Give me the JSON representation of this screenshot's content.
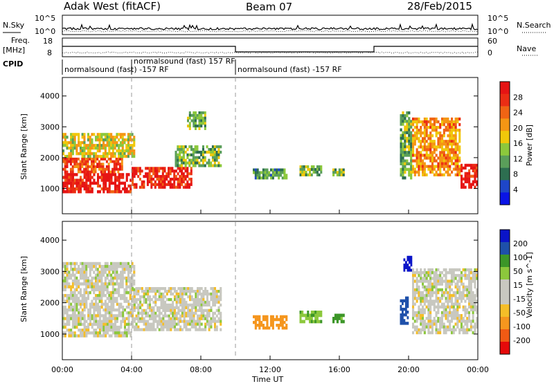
{
  "header": {
    "station": "Adak West (fitACF)",
    "beam": "Beam 07",
    "date": "28/Feb/2015"
  },
  "noise_panel": {
    "left_label": "N.Sky",
    "right_label": "N.Search",
    "left_ticks": [
      "10^5",
      "10^0"
    ],
    "right_ticks": [
      "10^5",
      "10^0"
    ]
  },
  "freq_panel": {
    "left_label_1": "Freq.",
    "left_label_2": "[MHz]",
    "right_label": "Nave",
    "left_ticks": [
      "18",
      "8"
    ],
    "right_ticks": [
      "60",
      "0"
    ]
  },
  "cpid": {
    "label": "CPID",
    "segments": [
      {
        "start_hour": 0,
        "end_hour": 4.0,
        "text": "normalsound (fast) -157 RF"
      },
      {
        "start_hour": 4.0,
        "end_hour": 10.0,
        "text": "normalsound (fast) 157 RF"
      },
      {
        "start_hour": 10.0,
        "end_hour": 24.0,
        "text": "normalsound (fast) -157 RF"
      }
    ]
  },
  "colors": {
    "power": [
      "#0a14e6",
      "#1e46c8",
      "#2d6e50",
      "#5a9e5a",
      "#8cc83c",
      "#f0c80a",
      "#f59614",
      "#f06414",
      "#eb2d14",
      "#e61414"
    ],
    "velocity": [
      "#e60a0a",
      "#f05a14",
      "#f5961e",
      "#f5be28",
      "#c8c8c0",
      "#c8c8c0",
      "#8cc83c",
      "#3c9628",
      "#1e50aa",
      "#0a14c8"
    ]
  },
  "chart_data": [
    {
      "type": "heatmap",
      "title": "Power",
      "xlabel": "Time UT",
      "ylabel": "Slant Range [km]",
      "x_ticks": [
        "00:00",
        "04:00",
        "08:00",
        "12:00",
        "16:00",
        "20:00",
        "00:00"
      ],
      "x_range_hours": [
        0,
        24
      ],
      "y_ticks": [
        1000,
        2000,
        3000,
        4000
      ],
      "y_range_km": [
        180,
        4600
      ],
      "colorbar_label": "Power [dB]",
      "colorbar_ticks": [
        4,
        8,
        12,
        16,
        20,
        24,
        28
      ],
      "colorbar_range": [
        0,
        30
      ],
      "regions": [
        {
          "t0": 0.0,
          "t1": 4.0,
          "r0": 850,
          "r1": 1500,
          "value": 28
        },
        {
          "t0": 0.0,
          "t1": 3.5,
          "r0": 1500,
          "r1": 2000,
          "value": 24
        },
        {
          "t0": 0.0,
          "t1": 4.2,
          "r0": 2000,
          "r1": 2800,
          "value": 16
        },
        {
          "t0": 4.0,
          "t1": 7.5,
          "r0": 1000,
          "r1": 1700,
          "value": 26
        },
        {
          "t0": 6.5,
          "t1": 9.2,
          "r0": 1700,
          "r1": 2400,
          "value": 12
        },
        {
          "t0": 7.2,
          "t1": 8.3,
          "r0": 2900,
          "r1": 3500,
          "value": 12
        },
        {
          "t0": 11.0,
          "t1": 13.0,
          "r0": 1300,
          "r1": 1650,
          "value": 10
        },
        {
          "t0": 13.7,
          "t1": 15.0,
          "r0": 1400,
          "r1": 1750,
          "value": 12
        },
        {
          "t0": 15.6,
          "t1": 16.3,
          "r0": 1400,
          "r1": 1650,
          "value": 12
        },
        {
          "t0": 19.5,
          "t1": 20.2,
          "r0": 1300,
          "r1": 3500,
          "value": 12
        },
        {
          "t0": 20.2,
          "t1": 23.0,
          "r0": 1400,
          "r1": 3300,
          "value": 20
        },
        {
          "t0": 23.0,
          "t1": 24.0,
          "r0": 1000,
          "r1": 1800,
          "value": 28
        }
      ]
    },
    {
      "type": "heatmap",
      "title": "Velocity",
      "xlabel": "Time UT",
      "ylabel": "Slant Range [km]",
      "x_ticks": [
        "00:00",
        "04:00",
        "08:00",
        "12:00",
        "16:00",
        "20:00",
        "00:00"
      ],
      "x_range_hours": [
        0,
        24
      ],
      "y_ticks": [
        1000,
        2000,
        3000,
        4000
      ],
      "y_range_km": [
        180,
        4600
      ],
      "colorbar_label": "Velocity [m s^-1]",
      "colorbar_ticks": [
        200,
        100,
        50,
        15,
        -15,
        -50,
        -100,
        -200
      ],
      "regions": [
        {
          "t0": 0.0,
          "t1": 4.0,
          "r0": 900,
          "r1": 2000,
          "value": 0
        },
        {
          "t0": 0.0,
          "t1": 4.2,
          "r0": 2000,
          "r1": 3300,
          "value": 0
        },
        {
          "t0": 4.0,
          "t1": 9.2,
          "r0": 1100,
          "r1": 2500,
          "value": 0
        },
        {
          "t0": 11.0,
          "t1": 13.0,
          "r0": 1150,
          "r1": 1600,
          "value": -75
        },
        {
          "t0": 13.7,
          "t1": 15.0,
          "r0": 1350,
          "r1": 1750,
          "value": 40
        },
        {
          "t0": 15.6,
          "t1": 16.3,
          "r0": 1350,
          "r1": 1650,
          "value": 60
        },
        {
          "t0": 19.7,
          "t1": 20.2,
          "r0": 3000,
          "r1": 3500,
          "value": 220
        },
        {
          "t0": 19.5,
          "t1": 20.0,
          "r0": 1300,
          "r1": 2200,
          "value": 150
        },
        {
          "t0": 20.2,
          "t1": 24.0,
          "r0": 1000,
          "r1": 3100,
          "value": 0
        }
      ]
    }
  ]
}
